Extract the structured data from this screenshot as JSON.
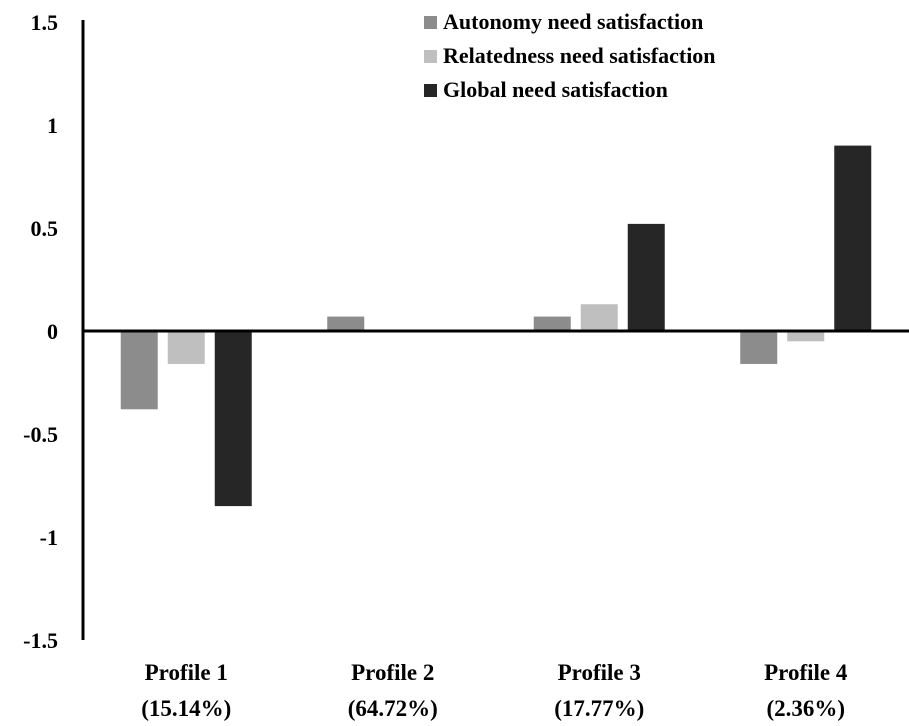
{
  "chart_data": {
    "type": "bar",
    "categories": [
      [
        "Profile 1",
        "(15.14%)"
      ],
      [
        "Profile 2",
        "(64.72%)"
      ],
      [
        "Profile 3",
        "(17.77%)"
      ],
      [
        "Profile 4",
        "(2.36%)"
      ]
    ],
    "series": [
      {
        "name": "Autonomy need satisfaction",
        "color": "#8c8c8c",
        "values": [
          -0.38,
          0.07,
          0.07,
          -0.16
        ]
      },
      {
        "name": "Relatedness need satisfaction",
        "color": "#bfbfbf",
        "values": [
          -0.16,
          0.0,
          0.13,
          -0.05
        ]
      },
      {
        "name": "Global need satisfaction",
        "color": "#262626",
        "values": [
          -0.85,
          0.0,
          0.52,
          0.9
        ]
      }
    ],
    "y_ticks": [
      "1.5",
      "1",
      "0.5",
      "0",
      "-0.5",
      "-1",
      "-1.5"
    ],
    "ylim": [
      -1.5,
      1.5
    ],
    "legend_position": "top-right",
    "grid": false,
    "title": "",
    "xlabel": "",
    "ylabel": ""
  }
}
